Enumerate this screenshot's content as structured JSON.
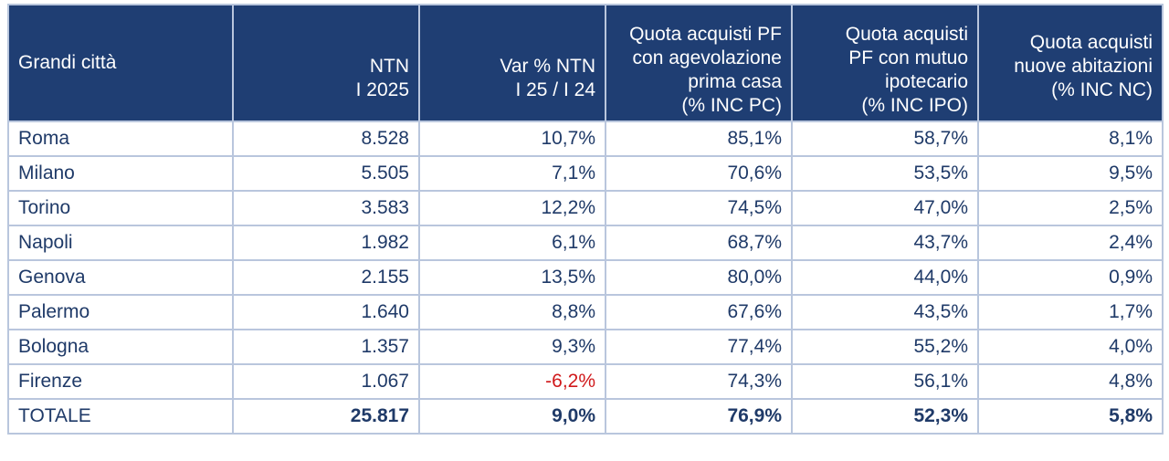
{
  "headers": [
    [
      "Grandi città"
    ],
    [
      "NTN",
      "I 2025"
    ],
    [
      "Var % NTN",
      "I 25 / I 24"
    ],
    [
      "Quota acquisti PF",
      "con agevolazione",
      "prima casa",
      "(% INC PC)"
    ],
    [
      "Quota acquisti",
      "PF con mutuo",
      "ipotecario",
      "(% INC IPO)"
    ],
    [
      "Quota acquisti",
      "nuove abitazioni",
      "(% INC NC)"
    ]
  ],
  "rows": [
    [
      "Roma",
      "8.528",
      "10,7%",
      "85,1%",
      "58,7%",
      "8,1%"
    ],
    [
      "Milano",
      "5.505",
      "7,1%",
      "70,6%",
      "53,5%",
      "9,5%"
    ],
    [
      "Torino",
      "3.583",
      "12,2%",
      "74,5%",
      "47,0%",
      "2,5%"
    ],
    [
      "Napoli",
      "1.982",
      "6,1%",
      "68,7%",
      "43,7%",
      "2,4%"
    ],
    [
      "Genova",
      "2.155",
      "13,5%",
      "80,0%",
      "44,0%",
      "0,9%"
    ],
    [
      "Palermo",
      "1.640",
      "8,8%",
      "67,6%",
      "43,5%",
      "1,7%"
    ],
    [
      "Bologna",
      "1.357",
      "9,3%",
      "77,4%",
      "55,2%",
      "4,0%"
    ],
    [
      "Firenze",
      "1.067",
      "-6,2%",
      "74,3%",
      "56,1%",
      "4,8%"
    ]
  ],
  "total": [
    "TOTALE",
    "25.817",
    "9,0%",
    "76,9%",
    "52,3%",
    "5,8%"
  ],
  "colors": {
    "header_bg": "#1f3e73",
    "text": "#1f3a68",
    "negative": "#d0191b",
    "grid": "#b9c6dd"
  }
}
